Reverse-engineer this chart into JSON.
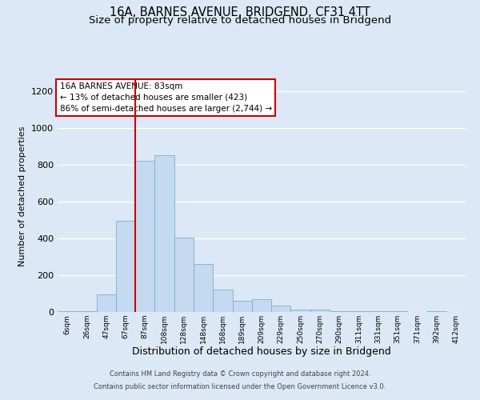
{
  "title": "16A, BARNES AVENUE, BRIDGEND, CF31 4TT",
  "subtitle": "Size of property relative to detached houses in Bridgend",
  "xlabel": "Distribution of detached houses by size in Bridgend",
  "ylabel": "Number of detached properties",
  "bar_labels": [
    "6sqm",
    "26sqm",
    "47sqm",
    "67sqm",
    "87sqm",
    "108sqm",
    "128sqm",
    "148sqm",
    "168sqm",
    "189sqm",
    "209sqm",
    "229sqm",
    "250sqm",
    "270sqm",
    "290sqm",
    "311sqm",
    "331sqm",
    "351sqm",
    "371sqm",
    "392sqm",
    "412sqm"
  ],
  "bar_values": [
    5,
    5,
    95,
    495,
    820,
    850,
    405,
    260,
    120,
    60,
    70,
    35,
    15,
    15,
    5,
    5,
    5,
    5,
    0,
    5,
    0
  ],
  "bar_color": "#c5d9f0",
  "bar_edge_color": "#7aafd4",
  "vline_color": "#cc0000",
  "ylim": [
    0,
    1260
  ],
  "yticks": [
    0,
    200,
    400,
    600,
    800,
    1000,
    1200
  ],
  "annotation_title": "16A BARNES AVENUE: 83sqm",
  "annotation_line1": "← 13% of detached houses are smaller (423)",
  "annotation_line2": "86% of semi-detached houses are larger (2,744) →",
  "annotation_box_color": "#ffffff",
  "annotation_box_edge": "#cc0000",
  "footer_line1": "Contains HM Land Registry data © Crown copyright and database right 2024.",
  "footer_line2": "Contains public sector information licensed under the Open Government Licence v3.0.",
  "bg_color": "#dce8f5",
  "plot_bg_color": "#dce8f5",
  "grid_color": "#ffffff",
  "title_fontsize": 10.5,
  "subtitle_fontsize": 9.5
}
